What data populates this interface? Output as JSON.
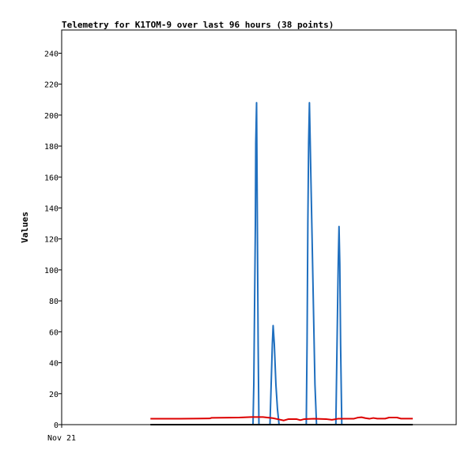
{
  "chart_data": {
    "type": "line",
    "title": "Telemetry for K1TOM-9 over last 96 hours (38 points)",
    "xlabel": "",
    "ylabel": "Values",
    "x_tick_labels": [
      "Nov 21"
    ],
    "x_range": [
      0,
      100
    ],
    "ylim": [
      0,
      255
    ],
    "y_ticks": [
      0,
      20,
      40,
      60,
      80,
      100,
      120,
      140,
      160,
      180,
      200,
      220,
      240
    ],
    "grid": false,
    "legend": "none",
    "series": [
      {
        "color": "#1f6fbf",
        "points": [
          [
            48.5,
            0
          ],
          [
            48.7,
            26
          ],
          [
            48.9,
            78
          ],
          [
            49.1,
            130
          ],
          [
            49.2,
            182
          ],
          [
            49.4,
            208
          ],
          [
            49.6,
            130
          ],
          [
            49.8,
            52
          ],
          [
            50.0,
            0
          ],
          [
            52.8,
            0
          ],
          [
            53.1,
            26
          ],
          [
            53.4,
            52
          ],
          [
            53.6,
            64
          ],
          [
            53.9,
            52
          ],
          [
            54.3,
            26
          ],
          [
            54.7,
            10
          ],
          [
            55.1,
            0
          ],
          [
            62.0,
            0
          ],
          [
            62.2,
            52
          ],
          [
            62.4,
            130
          ],
          [
            62.6,
            182
          ],
          [
            62.8,
            208
          ],
          [
            63.0,
            182
          ],
          [
            63.4,
            130
          ],
          [
            63.8,
            78
          ],
          [
            64.2,
            26
          ],
          [
            64.6,
            0
          ],
          [
            69.5,
            0
          ],
          [
            69.8,
            52
          ],
          [
            70.1,
            104
          ],
          [
            70.3,
            128
          ],
          [
            70.5,
            104
          ],
          [
            70.7,
            52
          ],
          [
            71.0,
            0
          ]
        ]
      },
      {
        "color": "#dd0000",
        "points": [
          [
            22.5,
            3.8
          ],
          [
            30,
            3.8
          ],
          [
            37.5,
            4.0
          ],
          [
            38.0,
            4.4
          ],
          [
            45,
            4.6
          ],
          [
            48,
            4.9
          ],
          [
            51,
            4.9
          ],
          [
            53.5,
            4.2
          ],
          [
            55.0,
            3.4
          ],
          [
            56.3,
            2.7
          ],
          [
            57.5,
            3.6
          ],
          [
            59.5,
            3.6
          ],
          [
            60.5,
            2.9
          ],
          [
            61.5,
            3.6
          ],
          [
            64,
            3.8
          ],
          [
            67,
            3.6
          ],
          [
            68.5,
            3.1
          ],
          [
            70,
            3.8
          ],
          [
            74,
            3.8
          ],
          [
            75,
            4.5
          ],
          [
            76,
            4.8
          ],
          [
            77,
            4.2
          ],
          [
            78,
            3.8
          ],
          [
            79,
            4.3
          ],
          [
            80,
            3.9
          ],
          [
            82,
            3.9
          ],
          [
            83,
            4.6
          ],
          [
            85,
            4.6
          ],
          [
            86,
            3.9
          ],
          [
            89,
            3.9
          ]
        ]
      },
      {
        "color": "#000000",
        "points": [
          [
            22.5,
            0
          ],
          [
            89,
            0
          ]
        ]
      }
    ]
  }
}
